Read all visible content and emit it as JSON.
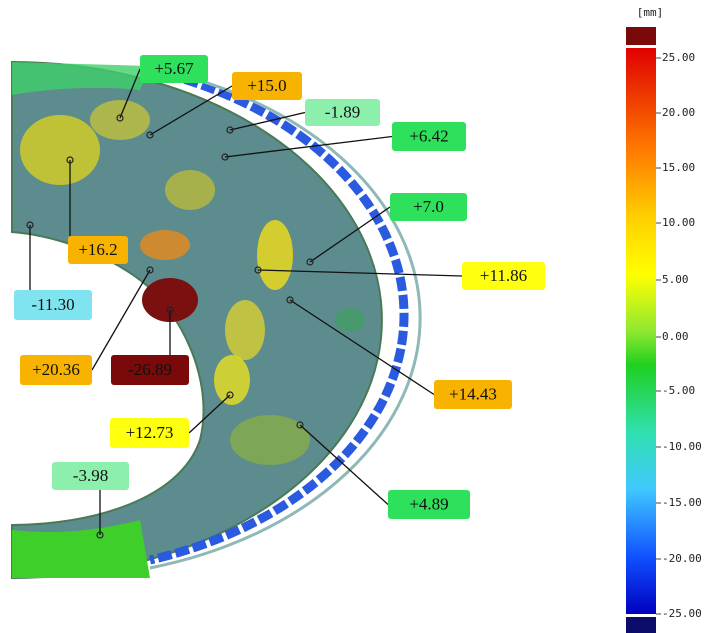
{
  "colorbar": {
    "unit": "[mm]",
    "ticks": [
      "25.00",
      "20.00",
      "15.00",
      "10.00",
      "5.00",
      "0.00",
      "-5.00",
      "-10.00",
      "-15.00",
      "-20.00",
      "-25.00"
    ],
    "top_color": "#7a0a0a",
    "bottom_color": "#0c0c6a"
  },
  "annotations": [
    {
      "label": "+5.67",
      "color": "#2fe05c"
    },
    {
      "label": "+15.0",
      "color": "#f7b300"
    },
    {
      "label": "-1.89",
      "color": "#8cefac"
    },
    {
      "label": "+6.42",
      "color": "#2fe05c"
    },
    {
      "label": "+7.0",
      "color": "#2fe05c"
    },
    {
      "label": "+11.86",
      "color": "#ffff10"
    },
    {
      "label": "+16.2",
      "color": "#f7b300"
    },
    {
      "label": "-11.30",
      "color": "#7fe3f0"
    },
    {
      "label": "+20.36",
      "color": "#f7b300"
    },
    {
      "label": "-26.89",
      "color": "#7a0a0a"
    },
    {
      "label": "+14.43",
      "color": "#f7b300"
    },
    {
      "label": "+12.73",
      "color": "#ffff10"
    },
    {
      "label": "+4.89",
      "color": "#2fe05c"
    },
    {
      "label": "-3.98",
      "color": "#8cefac"
    }
  ]
}
